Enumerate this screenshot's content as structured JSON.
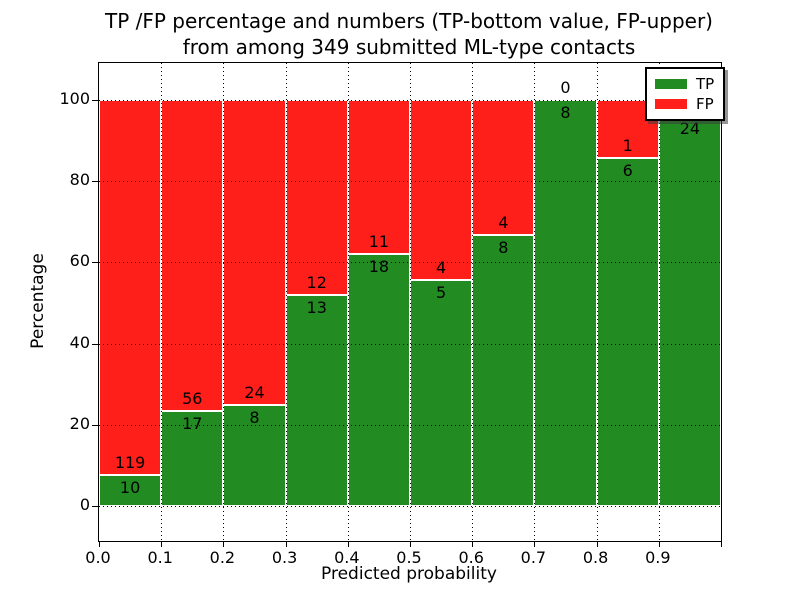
{
  "title": {
    "line1": "TP /FP percentage and numbers (TP-bottom value, FP-upper)",
    "line2": "from among 349 submitted ML-type contacts"
  },
  "axes": {
    "xlabel": "Predicted probability",
    "ylabel": "Percentage",
    "x_tick_labels": [
      "0.0",
      "0.1",
      "0.2",
      "0.3",
      "0.4",
      "0.5",
      "0.6",
      "0.7",
      "0.8",
      "0.9"
    ],
    "y_tick_labels": [
      "0",
      "20",
      "40",
      "60",
      "80",
      "100"
    ]
  },
  "legend": {
    "items": [
      {
        "label": "TP",
        "color": "#228b22"
      },
      {
        "label": "FP",
        "color": "#ff1f1a"
      }
    ]
  },
  "colors": {
    "tp_green": "#228b22",
    "fp_red": "#ff1f1a",
    "bar_edge": "#ffffff",
    "grid": "#000000",
    "background": "#ffffff"
  },
  "chart_data": {
    "type": "bar",
    "stacked": true,
    "title": "TP /FP percentage and numbers (TP-bottom value, FP-upper) from among 349 submitted ML-type contacts",
    "xlabel": "Predicted probability",
    "ylabel": "Percentage",
    "bin_edges": [
      0.0,
      0.1,
      0.2,
      0.3,
      0.4,
      0.5,
      0.6,
      0.7,
      0.8,
      0.9,
      1.0
    ],
    "series": [
      {
        "name": "TP",
        "color": "#228b22",
        "counts": [
          10,
          17,
          8,
          13,
          18,
          5,
          8,
          8,
          6,
          24
        ]
      },
      {
        "name": "FP",
        "color": "#ff1f1a",
        "counts": [
          119,
          56,
          24,
          12,
          11,
          4,
          4,
          0,
          1,
          null
        ]
      }
    ],
    "tp_percent": [
      7.75,
      23.29,
      25.0,
      52.0,
      62.07,
      55.56,
      66.67,
      100.0,
      85.71,
      96.0
    ],
    "xlim": [
      0.0,
      1.0
    ],
    "ylim": [
      -8.6,
      109.1
    ],
    "x_ticks": [
      0.0,
      0.1,
      0.2,
      0.3,
      0.4,
      0.5,
      0.6,
      0.7,
      0.8,
      0.9,
      1.0
    ],
    "y_ticks": [
      0,
      20,
      40,
      60,
      80,
      100
    ],
    "grid": true,
    "grid_style": "dotted",
    "legend_position": "upper right",
    "note_fp_last_bin_hidden_by_legend": true
  }
}
